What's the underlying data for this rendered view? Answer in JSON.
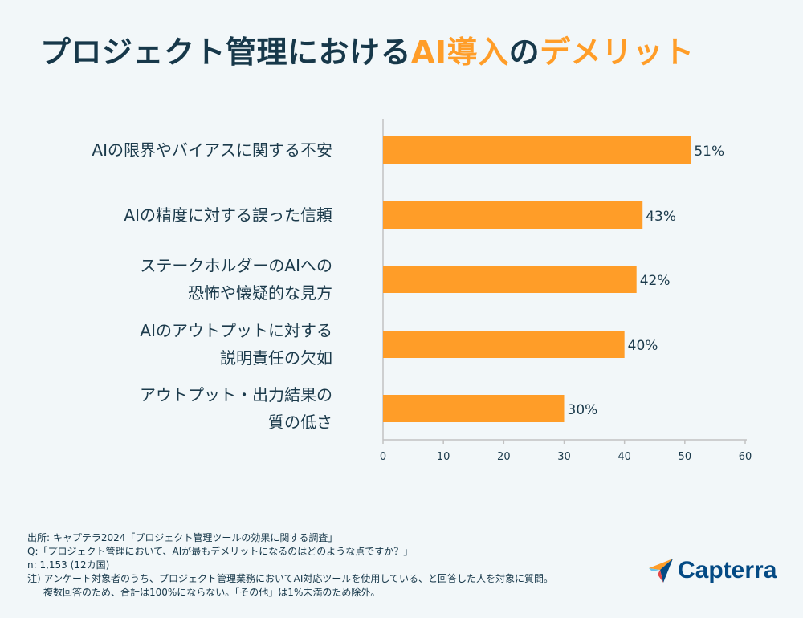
{
  "title": {
    "part1": "プロジェクト管理における",
    "part2": "AI導入",
    "part3": "の",
    "part4": "デメリット"
  },
  "colors": {
    "bar": "#ff9d28",
    "title_dark": "#17384a",
    "accent": "#ff9d28",
    "axis": "#c2c2c2",
    "text": "#1b3a4b"
  },
  "chart_data": {
    "type": "bar",
    "orientation": "horizontal",
    "categories": [
      [
        "AIの限界やバイアスに関する不安"
      ],
      [
        "AIの精度に対する誤った信頼"
      ],
      [
        "ステークホルダーのAIへの",
        "恐怖や懐疑的な見方"
      ],
      [
        "AIのアウトプットに対する",
        "説明責任の欠如"
      ],
      [
        "アウトプット・出力結果の",
        "質の低さ"
      ]
    ],
    "values": [
      51,
      43,
      42,
      40,
      30
    ],
    "value_labels": [
      "51%",
      "43%",
      "42%",
      "40%",
      "30%"
    ],
    "xlim": [
      0,
      60
    ],
    "xticks": [
      0,
      10,
      20,
      30,
      40,
      50,
      60
    ],
    "title": "プロジェクト管理におけるAI導入のデメリット",
    "xlabel": "",
    "ylabel": "",
    "grid": false
  },
  "footnote": {
    "line1": "出所: キャプテラ2024「プロジェクト管理ツールの効果に関する調査」",
    "line2": "Q:「プロジェクト管理において、AIが最もデメリットになるのはどのような点ですか？」",
    "line3": "n: 1,153 (12カ国)",
    "line4": "注) アンケート対象者のうち、プロジェクト管理業務においてAI対応ツールを使用している、と回答した人を対象に質問。",
    "line5": "複数回答のため、合計は100%にならない。「その他」は1%未満のため除外。"
  },
  "logo": {
    "text": "Capterra",
    "icon": "capterra-arrow-icon"
  }
}
